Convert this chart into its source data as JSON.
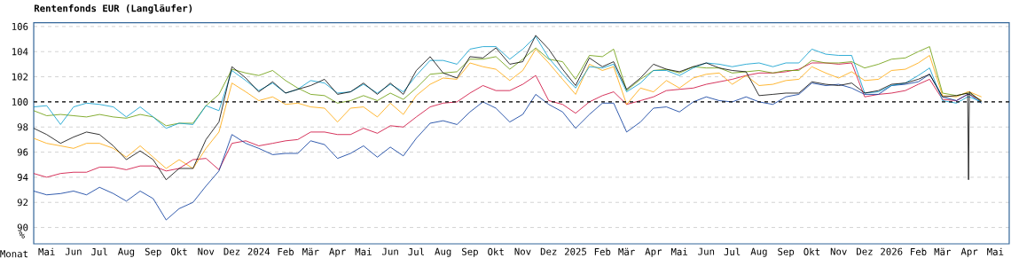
{
  "chart_data": {
    "type": "line",
    "title": "Rentenfonds EUR (Langläufer)",
    "xlabel": "Monat",
    "ylabel": "%",
    "x": [
      "2023-05-01",
      "2023-05-16",
      "2023-06-01",
      "2023-06-16",
      "2023-07-01",
      "2023-07-16",
      "2023-08-01",
      "2023-08-16",
      "2023-09-01",
      "2023-09-16",
      "2023-10-01",
      "2023-10-16",
      "2023-11-01",
      "2023-11-16",
      "2023-12-01",
      "2023-12-16",
      "2024-01-01",
      "2024-01-16",
      "2024-02-01",
      "2024-02-16",
      "2024-03-01",
      "2024-03-16",
      "2024-04-01",
      "2024-04-16",
      "2024-05-01",
      "2024-05-16",
      "2024-06-01",
      "2024-06-16",
      "2024-07-01",
      "2024-07-16",
      "2024-08-01",
      "2024-08-16",
      "2024-09-01",
      "2024-09-16",
      "2024-10-01",
      "2024-10-16",
      "2024-11-01",
      "2024-11-16",
      "2024-12-01",
      "2024-12-16",
      "2025-01-01",
      "2025-01-16",
      "2025-02-01",
      "2025-02-16",
      "2025-03-01",
      "2025-03-16",
      "2025-04-01",
      "2025-04-16",
      "2025-05-01",
      "2025-05-16",
      "2025-06-01",
      "2025-06-16",
      "2025-07-01",
      "2025-07-16",
      "2025-08-01",
      "2025-08-16",
      "2025-09-01",
      "2025-09-16",
      "2025-10-01",
      "2025-10-16",
      "2025-11-01",
      "2025-11-16",
      "2025-12-01",
      "2025-12-16",
      "2026-01-01",
      "2026-01-16",
      "2026-02-01",
      "2026-02-16",
      "2026-03-01",
      "2026-03-16",
      "2026-04-01",
      "2026-04-14",
      "2026-04-15",
      "2026-04-16",
      "2026-04-30"
    ],
    "series": [
      {
        "color": "#cc0033",
        "values": [
          94.3,
          94.0,
          94.3,
          94.4,
          94.4,
          94.8,
          94.8,
          94.6,
          94.9,
          94.9,
          94.5,
          94.7,
          95.4,
          95.5,
          94.6,
          96.7,
          96.9,
          96.5,
          96.7,
          96.9,
          97.0,
          97.6,
          97.6,
          97.4,
          97.4,
          97.9,
          97.5,
          98.1,
          98.0,
          98.8,
          99.6,
          99.9,
          100.0,
          100.7,
          101.3,
          100.9,
          100.9,
          101.4,
          102.1,
          100.1,
          99.8,
          99.1,
          100.0,
          100.5,
          100.8,
          99.8,
          100.1,
          100.4,
          100.9,
          101.0,
          101.1,
          101.4,
          101.6,
          101.8,
          102.1,
          102.3,
          102.3,
          102.4,
          102.6,
          103.1,
          103.1,
          103.0,
          103.1,
          100.4,
          100.6,
          100.7,
          100.9,
          101.4,
          101.8,
          100.2,
          100.1,
          100.6,
          100.6,
          100.6,
          100.1
        ]
      },
      {
        "color": "#003399",
        "values": [
          92.9,
          92.6,
          92.7,
          92.9,
          92.6,
          93.2,
          92.7,
          92.1,
          92.9,
          92.3,
          90.6,
          91.5,
          92.0,
          93.3,
          94.5,
          97.4,
          96.7,
          96.3,
          95.8,
          95.9,
          95.9,
          96.9,
          96.6,
          95.5,
          95.9,
          96.5,
          95.6,
          96.4,
          95.7,
          97.1,
          98.3,
          98.5,
          98.2,
          99.2,
          100.0,
          99.5,
          98.4,
          99.0,
          100.6,
          99.8,
          99.2,
          97.9,
          99.0,
          99.9,
          99.9,
          97.6,
          98.4,
          99.5,
          99.6,
          99.2,
          100.0,
          100.4,
          100.1,
          100.0,
          100.4,
          100.0,
          99.8,
          100.4,
          100.6,
          101.5,
          101.3,
          101.4,
          101.1,
          100.6,
          100.6,
          101.3,
          101.4,
          101.6,
          102.2,
          100.4,
          100.1,
          100.6,
          100.6,
          100.6,
          99.9
        ]
      },
      {
        "color": "#ffa500",
        "values": [
          97.1,
          96.7,
          96.5,
          96.3,
          96.7,
          96.7,
          96.3,
          95.6,
          96.5,
          95.6,
          94.7,
          95.4,
          94.7,
          96.3,
          97.6,
          101.5,
          100.8,
          100.1,
          100.4,
          99.8,
          99.9,
          99.6,
          99.5,
          98.4,
          99.5,
          99.6,
          98.8,
          99.9,
          99.0,
          100.5,
          101.4,
          101.9,
          101.8,
          103.1,
          102.8,
          102.6,
          101.7,
          102.5,
          104.2,
          103.1,
          101.8,
          100.6,
          103.0,
          102.5,
          102.8,
          99.8,
          101.1,
          100.8,
          101.7,
          101.1,
          101.9,
          102.2,
          102.3,
          101.4,
          102.1,
          101.3,
          101.4,
          101.7,
          101.8,
          102.8,
          102.3,
          101.9,
          102.4,
          101.7,
          101.8,
          102.5,
          102.6,
          103.1,
          103.7,
          100.5,
          100.4,
          100.8,
          100.8,
          100.8,
          100.4
        ]
      },
      {
        "color": "#669900",
        "values": [
          99.3,
          98.9,
          99.0,
          98.9,
          98.8,
          99.0,
          98.8,
          98.7,
          99.0,
          98.8,
          98.1,
          98.3,
          98.3,
          99.7,
          100.6,
          102.6,
          102.3,
          102.1,
          102.5,
          101.7,
          101.1,
          100.6,
          100.5,
          99.9,
          100.1,
          100.5,
          100.1,
          100.7,
          100.2,
          101.1,
          102.2,
          102.3,
          102.4,
          103.4,
          103.4,
          103.6,
          102.6,
          103.4,
          104.3,
          103.4,
          103.2,
          101.8,
          103.7,
          103.6,
          104.2,
          100.9,
          101.8,
          102.5,
          102.6,
          102.3,
          102.8,
          102.7,
          102.7,
          102.3,
          102.4,
          102.5,
          102.3,
          102.5,
          102.5,
          103.3,
          103.1,
          103.1,
          103.2,
          102.7,
          103.0,
          103.4,
          103.5,
          104.0,
          104.4,
          100.7,
          100.5,
          100.7,
          100.7,
          100.7,
          100.1
        ]
      },
      {
        "color": "#0099cc",
        "values": [
          99.6,
          99.7,
          98.2,
          99.6,
          99.9,
          99.8,
          99.6,
          98.8,
          99.6,
          98.8,
          97.9,
          98.3,
          98.2,
          99.7,
          99.3,
          102.5,
          101.7,
          100.9,
          101.5,
          100.7,
          101.0,
          101.7,
          101.5,
          100.7,
          100.8,
          101.4,
          100.7,
          101.4,
          100.8,
          102.1,
          103.3,
          103.3,
          103.0,
          104.2,
          104.4,
          104.4,
          103.4,
          104.2,
          105.2,
          103.5,
          102.2,
          101.1,
          102.8,
          102.7,
          103.0,
          100.8,
          101.5,
          102.5,
          102.5,
          102.1,
          102.7,
          103.1,
          103.0,
          102.8,
          103.0,
          103.1,
          102.8,
          103.1,
          103.1,
          104.2,
          103.8,
          103.7,
          103.7,
          100.7,
          100.8,
          101.3,
          101.5,
          102.1,
          102.7,
          100.1,
          99.9,
          100.4,
          100.4,
          100.4,
          100.0
        ]
      },
      {
        "color": "#000000",
        "values": [
          97.9,
          97.4,
          96.7,
          97.2,
          97.6,
          97.4,
          96.5,
          95.4,
          96.1,
          95.4,
          93.8,
          94.7,
          94.7,
          97.0,
          98.4,
          102.8,
          101.9,
          100.8,
          101.6,
          100.7,
          101.0,
          101.3,
          101.8,
          100.6,
          100.8,
          101.5,
          100.6,
          101.5,
          100.6,
          102.5,
          103.6,
          102.3,
          101.9,
          103.6,
          103.5,
          104.3,
          103.0,
          103.2,
          105.3,
          104.2,
          102.6,
          101.3,
          103.5,
          102.8,
          103.2,
          101.0,
          101.9,
          103.0,
          102.6,
          102.4,
          102.8,
          103.1,
          102.7,
          102.5,
          102.4,
          100.5,
          100.6,
          100.7,
          100.7,
          101.6,
          101.4,
          101.3,
          101.5,
          100.7,
          100.9,
          101.4,
          101.5,
          101.8,
          102.2,
          100.4,
          100.5,
          100.7,
          93.8,
          100.8,
          100.0
        ]
      }
    ],
    "xlim": [
      "2023-05-01",
      "2026-06-01"
    ],
    "xticks": [
      {
        "value": "2023-05-16",
        "label": "Mai"
      },
      {
        "value": "2023-06-16",
        "label": "Jun"
      },
      {
        "value": "2023-07-16",
        "label": "Jul"
      },
      {
        "value": "2023-08-16",
        "label": "Aug"
      },
      {
        "value": "2023-09-16",
        "label": "Sep"
      },
      {
        "value": "2023-10-16",
        "label": "Okt"
      },
      {
        "value": "2023-11-16",
        "label": "Nov"
      },
      {
        "value": "2023-12-16",
        "label": "Dez"
      },
      {
        "value": "2024-01-16",
        "label": "2024"
      },
      {
        "value": "2024-02-16",
        "label": "Feb"
      },
      {
        "value": "2024-03-16",
        "label": "Mär"
      },
      {
        "value": "2024-04-16",
        "label": "Apr"
      },
      {
        "value": "2024-05-16",
        "label": "Mai"
      },
      {
        "value": "2024-06-16",
        "label": "Jun"
      },
      {
        "value": "2024-07-16",
        "label": "Jul"
      },
      {
        "value": "2024-08-16",
        "label": "Aug"
      },
      {
        "value": "2024-09-16",
        "label": "Sep"
      },
      {
        "value": "2024-10-16",
        "label": "Okt"
      },
      {
        "value": "2024-11-16",
        "label": "Nov"
      },
      {
        "value": "2024-12-16",
        "label": "Dez"
      },
      {
        "value": "2025-01-16",
        "label": "2025"
      },
      {
        "value": "2025-02-16",
        "label": "Feb"
      },
      {
        "value": "2025-03-16",
        "label": "Mär"
      },
      {
        "value": "2025-04-16",
        "label": "Apr"
      },
      {
        "value": "2025-05-16",
        "label": "Mai"
      },
      {
        "value": "2025-06-16",
        "label": "Jun"
      },
      {
        "value": "2025-07-16",
        "label": "Jul"
      },
      {
        "value": "2025-08-16",
        "label": "Aug"
      },
      {
        "value": "2025-09-16",
        "label": "Sep"
      },
      {
        "value": "2025-10-16",
        "label": "Okt"
      },
      {
        "value": "2025-11-16",
        "label": "Nov"
      },
      {
        "value": "2025-12-16",
        "label": "Dez"
      },
      {
        "value": "2026-01-16",
        "label": "2026"
      },
      {
        "value": "2026-02-16",
        "label": "Feb"
      },
      {
        "value": "2026-03-16",
        "label": "Mär"
      },
      {
        "value": "2026-04-16",
        "label": "Apr"
      },
      {
        "value": "2026-05-16",
        "label": "Mai"
      }
    ],
    "ylim": [
      88.7,
      106.3
    ],
    "yticks": [
      90,
      92,
      94,
      96,
      98,
      100,
      102,
      104,
      106
    ],
    "grid": "y",
    "marker": "none",
    "ref_lines": [
      {
        "axis": "y",
        "value": 100,
        "color": "#000000",
        "line_style": "dashed"
      }
    ]
  }
}
